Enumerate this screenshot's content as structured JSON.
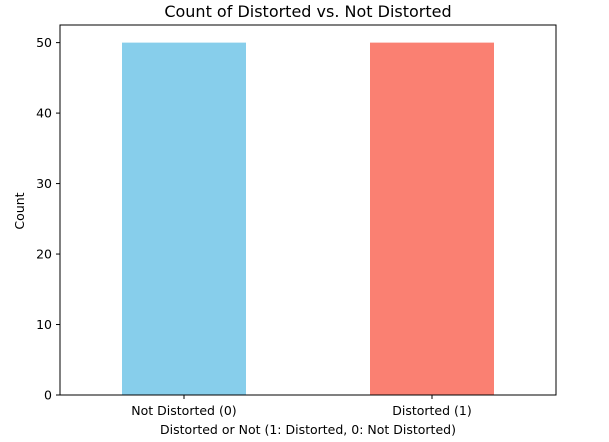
{
  "chart_data": {
    "type": "bar",
    "title": "Count of Distorted vs. Not Distorted",
    "xlabel": "Distorted or Not (1: Distorted, 0: Not Distorted)",
    "ylabel": "Count",
    "categories": [
      "Not Distorted (0)",
      "Distorted (1)"
    ],
    "values": [
      50,
      50
    ],
    "colors": [
      "#87ceeb",
      "#fa8072"
    ],
    "ylim": [
      0,
      52.5
    ],
    "yticks": [
      0,
      10,
      20,
      30,
      40,
      50
    ],
    "grid": false,
    "legend": "none"
  }
}
